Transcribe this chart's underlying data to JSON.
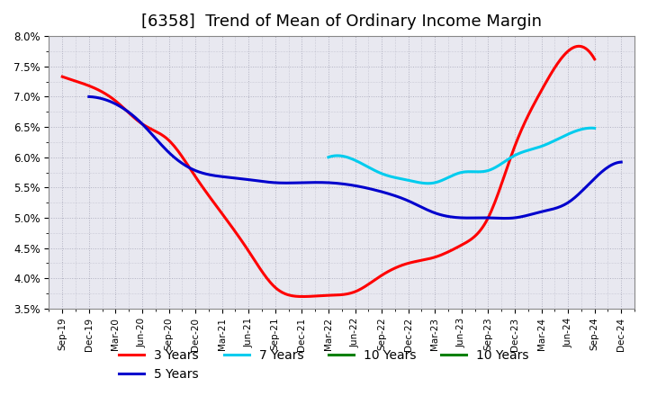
{
  "title": "[6358]  Trend of Mean of Ordinary Income Margin",
  "x_labels": [
    "Sep-19",
    "Dec-19",
    "Mar-20",
    "Jun-20",
    "Sep-20",
    "Dec-20",
    "Mar-21",
    "Jun-21",
    "Sep-21",
    "Dec-21",
    "Mar-22",
    "Jun-22",
    "Sep-22",
    "Dec-22",
    "Mar-23",
    "Jun-23",
    "Sep-23",
    "Dec-23",
    "Mar-24",
    "Jun-24",
    "Sep-24",
    "Dec-24"
  ],
  "ylim": [
    0.035,
    0.08
  ],
  "yticks": [
    0.035,
    0.04,
    0.045,
    0.05,
    0.055,
    0.06,
    0.065,
    0.07,
    0.075,
    0.08
  ],
  "series": {
    "3 Years": {
      "color": "#FF0000",
      "data_x": [
        0,
        1,
        2,
        3,
        4,
        5,
        6,
        7,
        8,
        9,
        10,
        11,
        12,
        13,
        14,
        15,
        16,
        17,
        18,
        19,
        20
      ],
      "data_y": [
        0.0733,
        0.0718,
        0.0693,
        0.0655,
        0.0628,
        0.0568,
        0.0507,
        0.0445,
        0.0385,
        0.037,
        0.0372,
        0.0378,
        0.0405,
        0.0425,
        0.0435,
        0.0455,
        0.05,
        0.0618,
        0.071,
        0.0775,
        0.0762
      ]
    },
    "5 Years": {
      "color": "#0000CD",
      "data_x": [
        1,
        2,
        3,
        4,
        5,
        6,
        7,
        8,
        9,
        10,
        11,
        12,
        13,
        14,
        15,
        16,
        17,
        18,
        19,
        20,
        21
      ],
      "data_y": [
        0.07,
        0.0688,
        0.0655,
        0.0608,
        0.0578,
        0.0568,
        0.0563,
        0.0558,
        0.0558,
        0.0558,
        0.0553,
        0.0543,
        0.0528,
        0.0508,
        0.05,
        0.05,
        0.05,
        0.051,
        0.0525,
        0.0565,
        0.0592
      ]
    },
    "7 Years": {
      "color": "#00CCEE",
      "data_x": [
        10,
        11,
        12,
        13,
        14,
        15,
        16,
        17,
        18,
        19,
        20
      ],
      "data_y": [
        0.06,
        0.0595,
        0.0573,
        0.0562,
        0.0558,
        0.0575,
        0.0578,
        0.0603,
        0.0618,
        0.0638,
        0.0648
      ]
    },
    "10 Years": {
      "color": "#008000",
      "data_x": [],
      "data_y": []
    }
  },
  "plot_bg_color": "#E8E8F0",
  "background_color": "#FFFFFF",
  "grid_color": "#B0B0C0",
  "title_fontsize": 13,
  "legend_fontsize": 10,
  "line_width": 2.2
}
